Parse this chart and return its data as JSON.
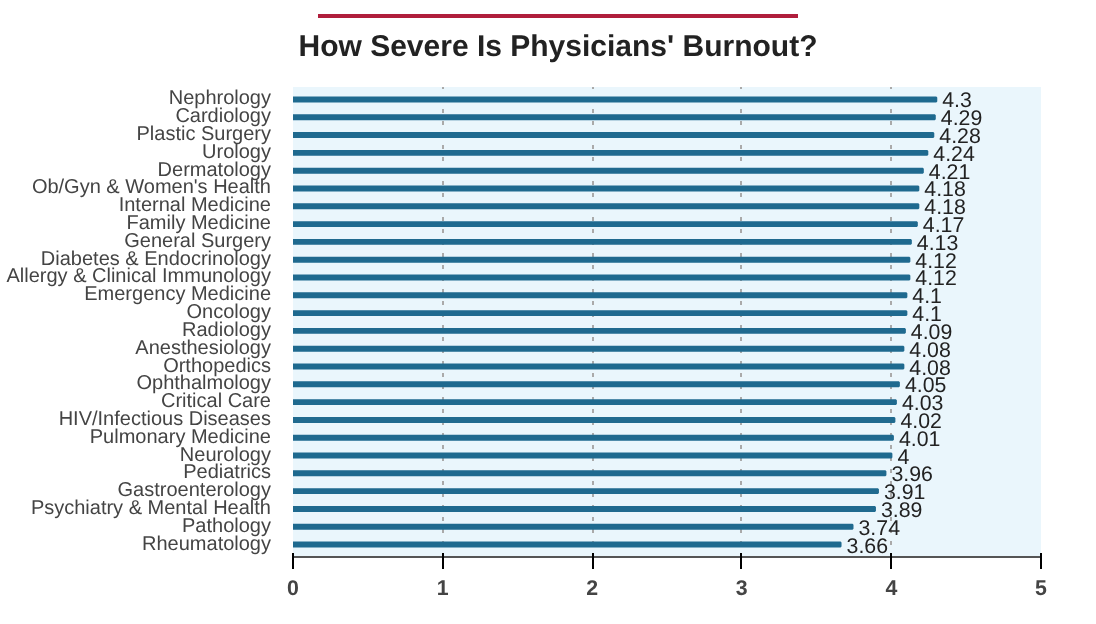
{
  "chart_data": {
    "type": "bar",
    "orientation": "horizontal",
    "title": "How Severe Is Physicians' Burnout?",
    "categories": [
      "Nephrology",
      "Cardiology",
      "Plastic Surgery",
      "Urology",
      "Dermatology",
      "Ob/Gyn & Women's Health",
      "Internal Medicine",
      "Family Medicine",
      "General Surgery",
      "Diabetes & Endocrinology",
      "Allergy & Clinical Immunology",
      "Emergency Medicine",
      "Oncology",
      "Radiology",
      "Anesthesiology",
      "Orthopedics",
      "Ophthalmology",
      "Critical Care",
      "HIV/Infectious Diseases",
      "Pulmonary Medicine",
      "Neurology",
      "Pediatrics",
      "Gastroenterology",
      "Psychiatry & Mental Health",
      "Pathology",
      "Rheumatology"
    ],
    "values": [
      4.3,
      4.29,
      4.28,
      4.24,
      4.21,
      4.18,
      4.18,
      4.17,
      4.13,
      4.12,
      4.12,
      4.1,
      4.1,
      4.09,
      4.08,
      4.08,
      4.05,
      4.03,
      4.02,
      4.01,
      4,
      3.96,
      3.91,
      3.89,
      3.74,
      3.66
    ],
    "color": "#1f6a8f",
    "xlim": [
      0,
      5
    ],
    "xticks": [
      0,
      1,
      2,
      3,
      4,
      5
    ],
    "grid": "x",
    "data_labels": true
  }
}
